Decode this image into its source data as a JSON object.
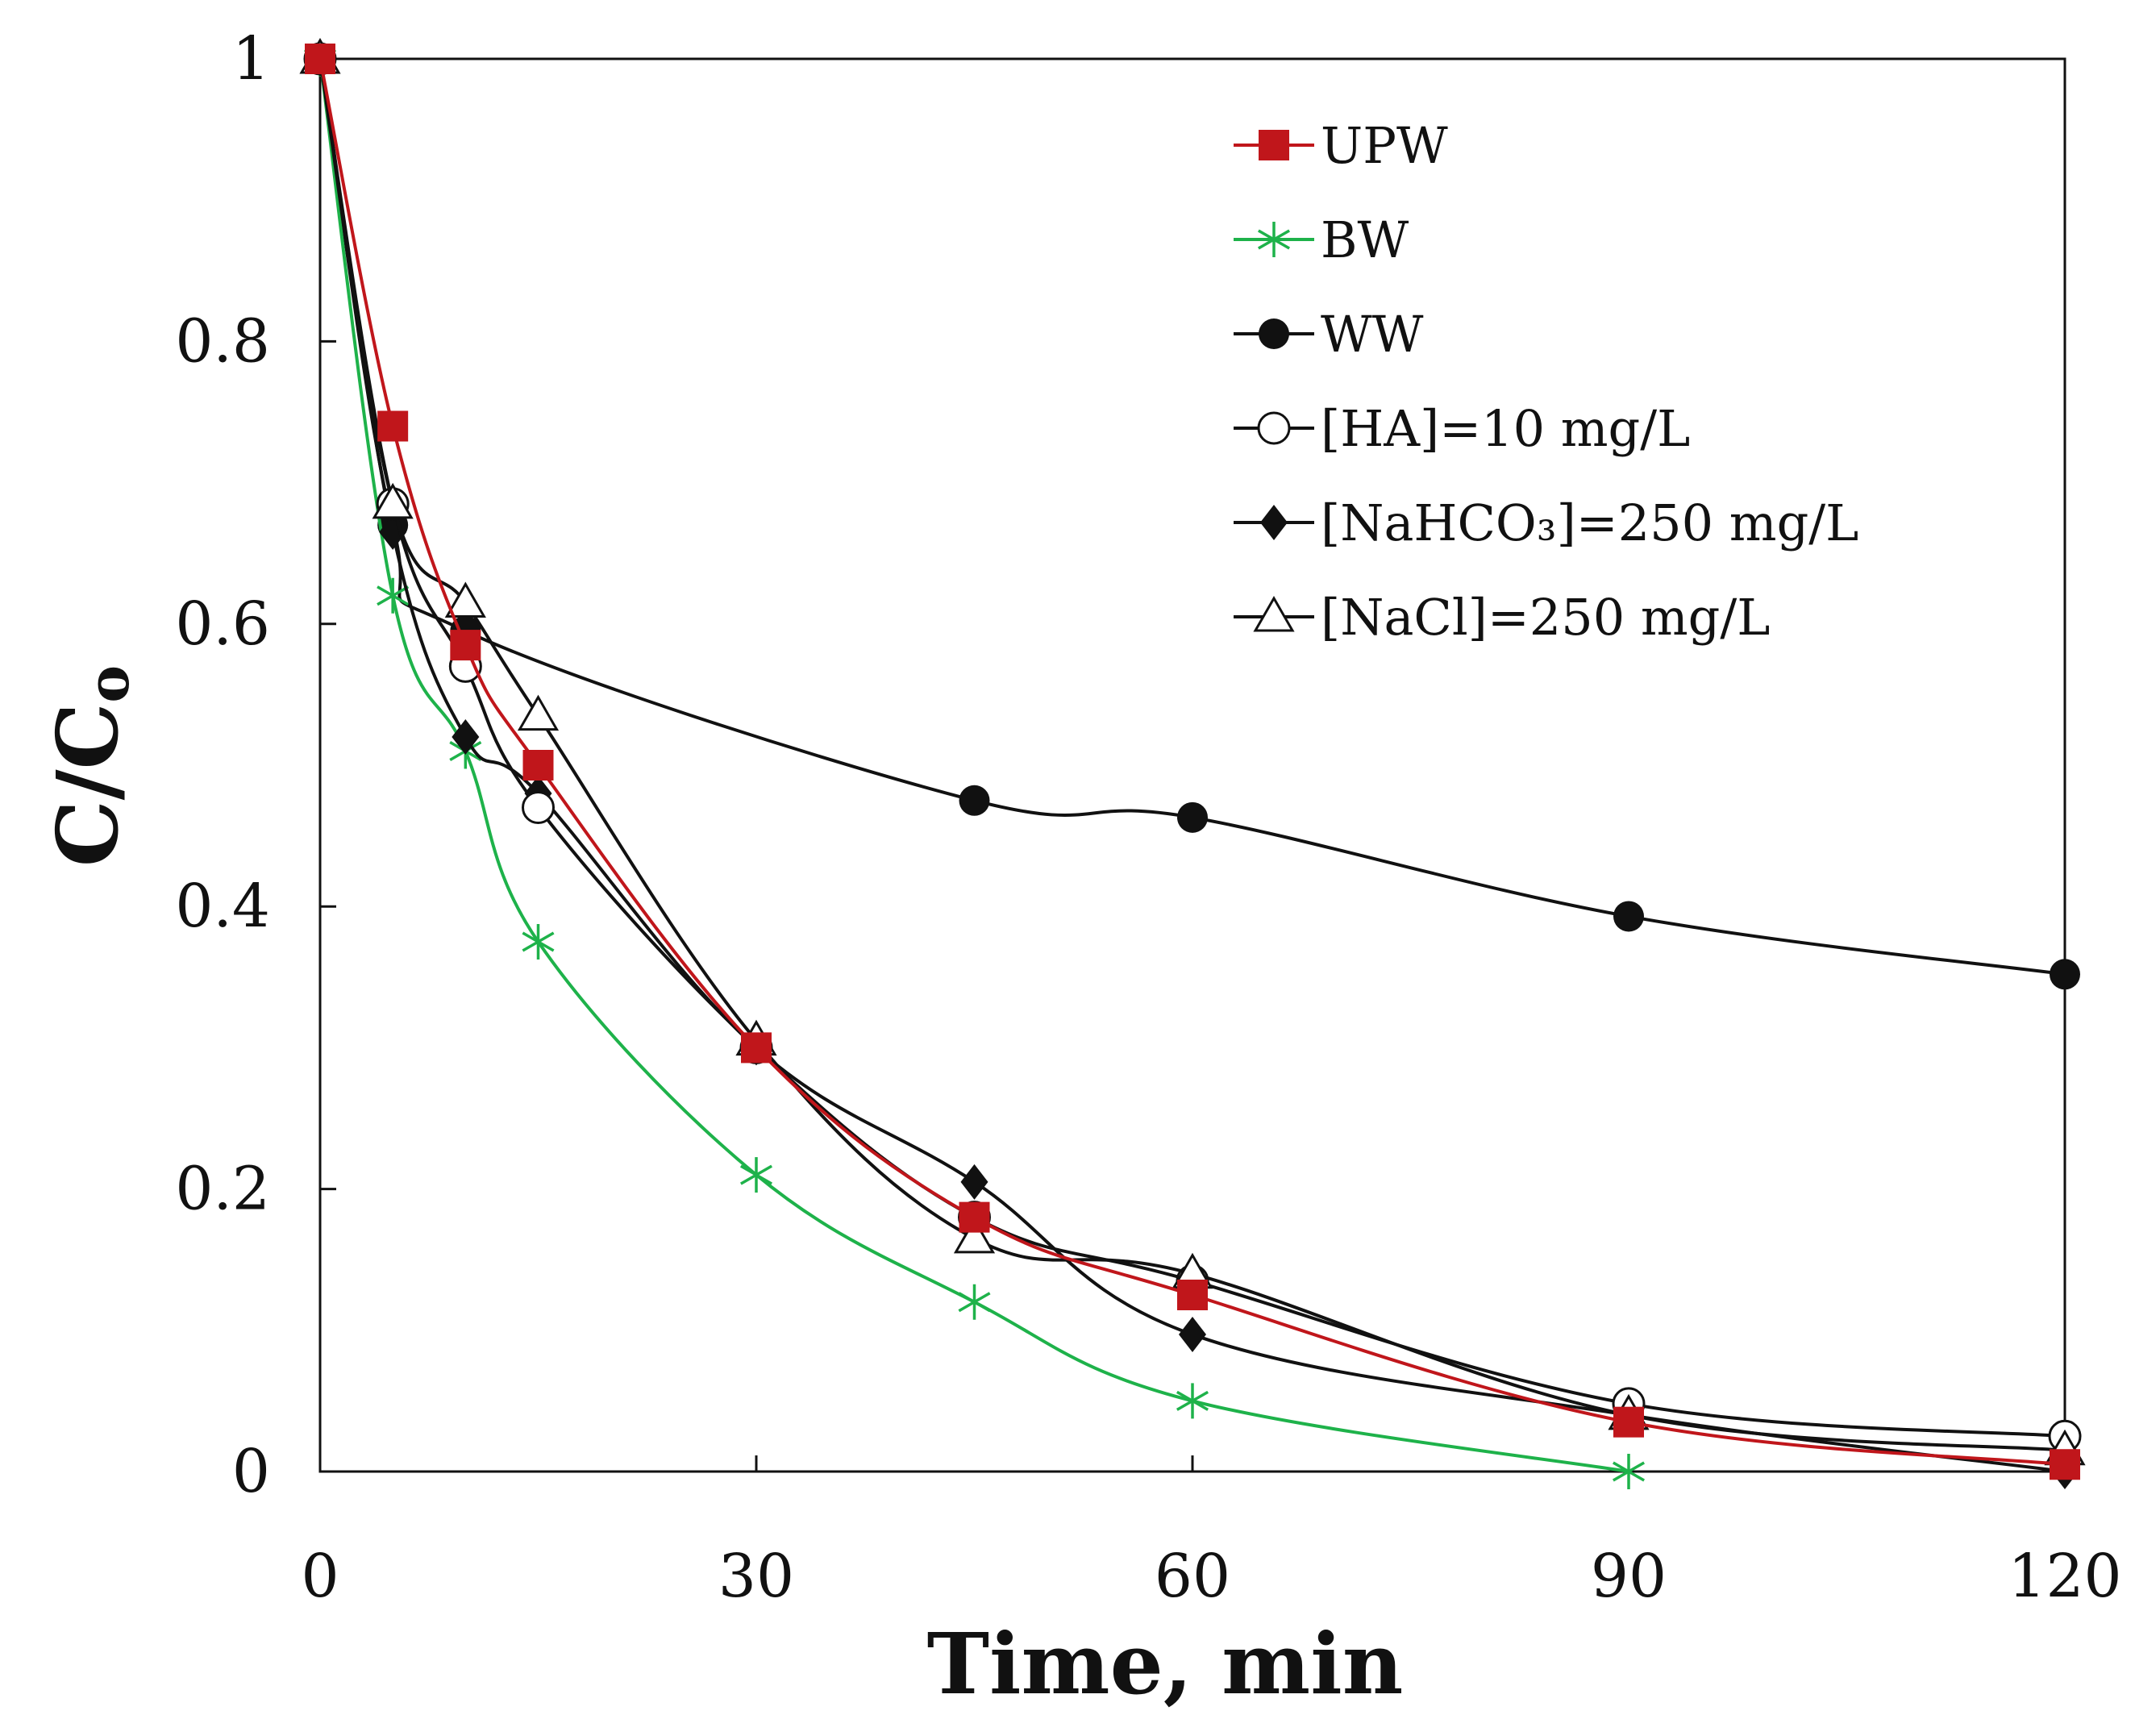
{
  "chart_data": {
    "type": "line",
    "title": "",
    "xlabel": "Time, min",
    "ylabel": "C/C",
    "ylabel_sub": "o",
    "xlim": [
      0,
      120
    ],
    "ylim": [
      0,
      1
    ],
    "xticks": [
      0,
      30,
      60,
      90,
      120
    ],
    "xtick_labels": [
      "0",
      "30",
      "60",
      "90",
      "120"
    ],
    "yticks": [
      0,
      0.2,
      0.4,
      0.6,
      0.8,
      1
    ],
    "ytick_labels": [
      "0",
      "0.2",
      "0.4",
      "0.6",
      "0.8",
      "1"
    ],
    "grid": false,
    "legend_position": "top-right",
    "series": [
      {
        "key": "upw",
        "name": "UPW",
        "color": "#c0161b",
        "marker": "square-filled",
        "x": [
          0,
          5,
          10,
          15,
          30,
          45,
          60,
          90,
          120
        ],
        "y": [
          1.0,
          0.74,
          0.585,
          0.5,
          0.3,
          0.18,
          0.125,
          0.035,
          0.005
        ]
      },
      {
        "key": "bw",
        "name": "BW",
        "color": "#1eb24a",
        "marker": "asterisk",
        "x": [
          0,
          5,
          10,
          15,
          30,
          45,
          60,
          90
        ],
        "y": [
          1.0,
          0.62,
          0.51,
          0.375,
          0.21,
          0.12,
          0.05,
          0.0
        ]
      },
      {
        "key": "ww",
        "name": "WW",
        "color": "#111111",
        "marker": "circle-filled",
        "x": [
          0,
          5,
          10,
          45,
          60,
          90,
          120
        ],
        "y": [
          1.0,
          0.67,
          0.595,
          0.475,
          0.463,
          0.393,
          0.352
        ]
      },
      {
        "key": "ha",
        "name": "[HA]=10  mg/L",
        "color": "#111111",
        "marker": "circle-open",
        "x": [
          0,
          5,
          10,
          15,
          30,
          45,
          60,
          90,
          120
        ],
        "y": [
          1.0,
          0.685,
          0.57,
          0.47,
          0.3,
          0.18,
          0.135,
          0.048,
          0.025
        ]
      },
      {
        "key": "nahco3",
        "name": "[NaHCO₃]=250 mg/L",
        "color": "#111111",
        "marker": "diamond-filled",
        "x": [
          0,
          5,
          10,
          15,
          30,
          45,
          60,
          90,
          120
        ],
        "y": [
          1.0,
          0.665,
          0.52,
          0.48,
          0.3,
          0.205,
          0.097,
          0.04,
          0.0
        ]
      },
      {
        "key": "nacl",
        "name": "[NaCl]=250 mg/L",
        "color": "#111111",
        "marker": "triangle-open",
        "x": [
          0,
          5,
          10,
          15,
          30,
          45,
          60,
          90,
          120
        ],
        "y": [
          1.0,
          0.685,
          0.615,
          0.535,
          0.305,
          0.165,
          0.14,
          0.04,
          0.015
        ]
      }
    ]
  }
}
